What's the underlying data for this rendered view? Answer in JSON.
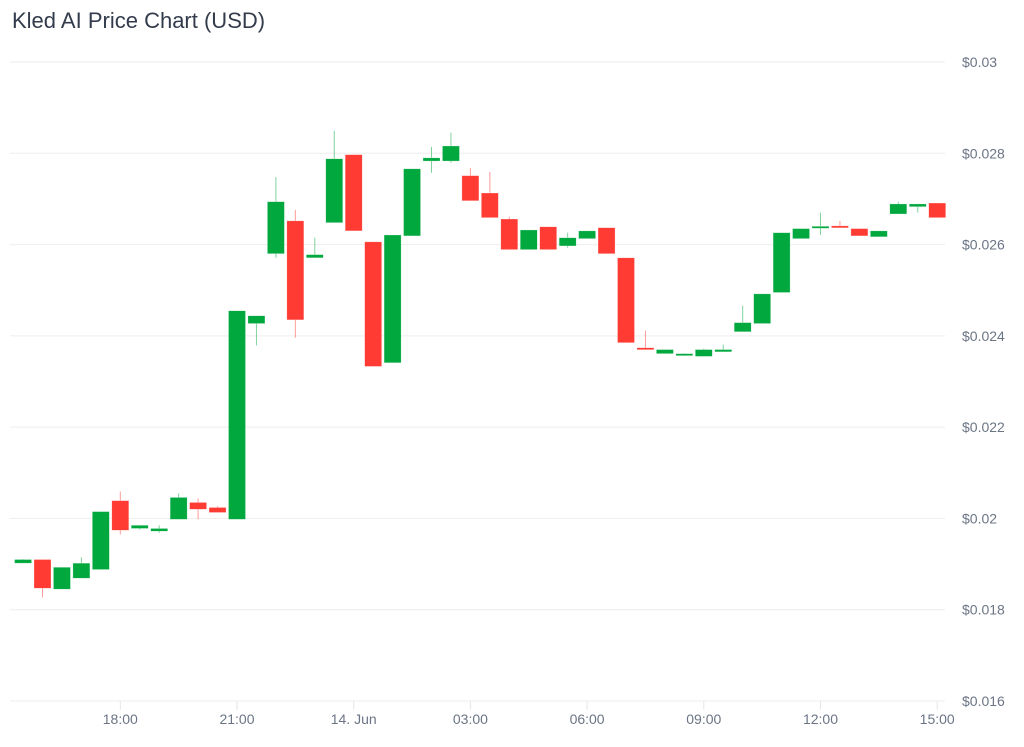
{
  "title": "Kled AI Price Chart (USD)",
  "colors": {
    "up": "#00a83e",
    "down": "#ff3b33",
    "grid": "#eeeeee",
    "text": "#6b7585"
  },
  "chart_data": {
    "type": "candlestick",
    "title": "Kled AI Price Chart (USD)",
    "interval": "30m",
    "ylim": [
      0.016,
      0.03
    ],
    "yticks": [
      0.016,
      0.018,
      0.02,
      0.022,
      0.024,
      0.026,
      0.028,
      0.03
    ],
    "ytick_labels": [
      "$0.016",
      "$0.018",
      "$0.02",
      "$0.022",
      "$0.024",
      "$0.026",
      "$0.028",
      "$0.03"
    ],
    "xtick_labels": [
      {
        "time": "13 Jun 18:00",
        "label": "18:00"
      },
      {
        "time": "13 Jun 21:00",
        "label": "21:00"
      },
      {
        "time": "14 Jun 00:00",
        "label": "14. Jun"
      },
      {
        "time": "14 Jun 03:00",
        "label": "03:00"
      },
      {
        "time": "14 Jun 06:00",
        "label": "06:00"
      },
      {
        "time": "14 Jun 09:00",
        "label": "09:00"
      },
      {
        "time": "14 Jun 12:00",
        "label": "12:00"
      },
      {
        "time": "14 Jun 15:00",
        "label": "15:00"
      }
    ],
    "grid": true,
    "y_axis_side": "right",
    "candles": [
      {
        "t": "13 Jun 15:30",
        "o": 0.01902,
        "h": 0.01911,
        "l": 0.01902,
        "c": 0.0191
      },
      {
        "t": "13 Jun 16:00",
        "o": 0.0191,
        "h": 0.0191,
        "l": 0.01827,
        "c": 0.01847
      },
      {
        "t": "13 Jun 16:30",
        "o": 0.01845,
        "h": 0.01893,
        "l": 0.01845,
        "c": 0.01893
      },
      {
        "t": "13 Jun 17:00",
        "o": 0.01869,
        "h": 0.01915,
        "l": 0.01869,
        "c": 0.01902
      },
      {
        "t": "13 Jun 17:30",
        "o": 0.01888,
        "h": 0.02015,
        "l": 0.01888,
        "c": 0.02015
      },
      {
        "t": "13 Jun 18:00",
        "o": 0.02039,
        "h": 0.02059,
        "l": 0.01965,
        "c": 0.01974
      },
      {
        "t": "13 Jun 18:30",
        "o": 0.01978,
        "h": 0.01985,
        "l": 0.01975,
        "c": 0.01985
      },
      {
        "t": "13 Jun 19:00",
        "o": 0.01972,
        "h": 0.01985,
        "l": 0.01968,
        "c": 0.01978
      },
      {
        "t": "13 Jun 19:30",
        "o": 0.01998,
        "h": 0.02055,
        "l": 0.01998,
        "c": 0.02046
      },
      {
        "t": "13 Jun 20:00",
        "o": 0.02035,
        "h": 0.02044,
        "l": 0.01998,
        "c": 0.0202
      },
      {
        "t": "13 Jun 20:30",
        "o": 0.02024,
        "h": 0.02027,
        "l": 0.02013,
        "c": 0.02013
      },
      {
        "t": "13 Jun 21:00",
        "o": 0.01998,
        "h": 0.02455,
        "l": 0.01998,
        "c": 0.02455
      },
      {
        "t": "13 Jun 21:30",
        "o": 0.02427,
        "h": 0.02444,
        "l": 0.02379,
        "c": 0.02444
      },
      {
        "t": "13 Jun 22:00",
        "o": 0.0258,
        "h": 0.02748,
        "l": 0.02571,
        "c": 0.02694
      },
      {
        "t": "13 Jun 22:30",
        "o": 0.02652,
        "h": 0.02676,
        "l": 0.02396,
        "c": 0.02435
      },
      {
        "t": "13 Jun 23:00",
        "o": 0.02571,
        "h": 0.02615,
        "l": 0.02571,
        "c": 0.02578
      },
      {
        "t": "13 Jun 23:30",
        "o": 0.02648,
        "h": 0.02849,
        "l": 0.02648,
        "c": 0.02788
      },
      {
        "t": "14 Jun 00:00",
        "o": 0.02797,
        "h": 0.02797,
        "l": 0.0263,
        "c": 0.0263
      },
      {
        "t": "14 Jun 00:30",
        "o": 0.02606,
        "h": 0.02606,
        "l": 0.02333,
        "c": 0.02333
      },
      {
        "t": "14 Jun 01:00",
        "o": 0.02341,
        "h": 0.02621,
        "l": 0.02341,
        "c": 0.02621
      },
      {
        "t": "14 Jun 01:30",
        "o": 0.02619,
        "h": 0.02766,
        "l": 0.02619,
        "c": 0.02766
      },
      {
        "t": "14 Jun 02:00",
        "o": 0.02783,
        "h": 0.02814,
        "l": 0.02757,
        "c": 0.0279
      },
      {
        "t": "14 Jun 02:30",
        "o": 0.02783,
        "h": 0.02845,
        "l": 0.02779,
        "c": 0.02816
      },
      {
        "t": "14 Jun 03:00",
        "o": 0.02751,
        "h": 0.02768,
        "l": 0.02696,
        "c": 0.02696
      },
      {
        "t": "14 Jun 03:30",
        "o": 0.02713,
        "h": 0.02759,
        "l": 0.02659,
        "c": 0.02659
      },
      {
        "t": "14 Jun 04:00",
        "o": 0.02656,
        "h": 0.02661,
        "l": 0.02589,
        "c": 0.02589
      },
      {
        "t": "14 Jun 04:30",
        "o": 0.02589,
        "h": 0.02632,
        "l": 0.02589,
        "c": 0.02632
      },
      {
        "t": "14 Jun 05:00",
        "o": 0.02639,
        "h": 0.02639,
        "l": 0.02589,
        "c": 0.02589
      },
      {
        "t": "14 Jun 05:30",
        "o": 0.02597,
        "h": 0.02626,
        "l": 0.02593,
        "c": 0.02615
      },
      {
        "t": "14 Jun 06:00",
        "o": 0.02613,
        "h": 0.0263,
        "l": 0.02613,
        "c": 0.0263
      },
      {
        "t": "14 Jun 06:30",
        "o": 0.02637,
        "h": 0.02637,
        "l": 0.0258,
        "c": 0.0258
      },
      {
        "t": "14 Jun 07:00",
        "o": 0.02571,
        "h": 0.02571,
        "l": 0.02385,
        "c": 0.02385
      },
      {
        "t": "14 Jun 07:30",
        "o": 0.02374,
        "h": 0.02411,
        "l": 0.02372,
        "c": 0.02372
      },
      {
        "t": "14 Jun 08:00",
        "o": 0.02361,
        "h": 0.0237,
        "l": 0.02361,
        "c": 0.0237
      },
      {
        "t": "14 Jun 08:30",
        "o": 0.0236,
        "h": 0.02362,
        "l": 0.02359,
        "c": 0.02361
      },
      {
        "t": "14 Jun 09:00",
        "o": 0.02355,
        "h": 0.02372,
        "l": 0.02355,
        "c": 0.0237
      },
      {
        "t": "14 Jun 09:30",
        "o": 0.02365,
        "h": 0.02381,
        "l": 0.02365,
        "c": 0.0237
      },
      {
        "t": "14 Jun 10:00",
        "o": 0.02409,
        "h": 0.02466,
        "l": 0.02409,
        "c": 0.02429
      },
      {
        "t": "14 Jun 10:30",
        "o": 0.02427,
        "h": 0.02492,
        "l": 0.02427,
        "c": 0.02492
      },
      {
        "t": "14 Jun 11:00",
        "o": 0.02495,
        "h": 0.02626,
        "l": 0.02495,
        "c": 0.02626
      },
      {
        "t": "14 Jun 11:30",
        "o": 0.02613,
        "h": 0.02635,
        "l": 0.02613,
        "c": 0.02635
      },
      {
        "t": "14 Jun 12:00",
        "o": 0.02638,
        "h": 0.0267,
        "l": 0.02621,
        "c": 0.0264
      },
      {
        "t": "14 Jun 12:30",
        "o": 0.02641,
        "h": 0.02652,
        "l": 0.02639,
        "c": 0.02639
      },
      {
        "t": "14 Jun 13:00",
        "o": 0.02635,
        "h": 0.02635,
        "l": 0.02619,
        "c": 0.02619
      },
      {
        "t": "14 Jun 13:30",
        "o": 0.02617,
        "h": 0.0263,
        "l": 0.02617,
        "c": 0.0263
      },
      {
        "t": "14 Jun 14:00",
        "o": 0.02667,
        "h": 0.02694,
        "l": 0.02667,
        "c": 0.02689
      },
      {
        "t": "14 Jun 14:30",
        "o": 0.02683,
        "h": 0.02689,
        "l": 0.0267,
        "c": 0.02689
      },
      {
        "t": "14 Jun 15:00",
        "o": 0.02691,
        "h": 0.02691,
        "l": 0.02659,
        "c": 0.02659
      }
    ]
  }
}
